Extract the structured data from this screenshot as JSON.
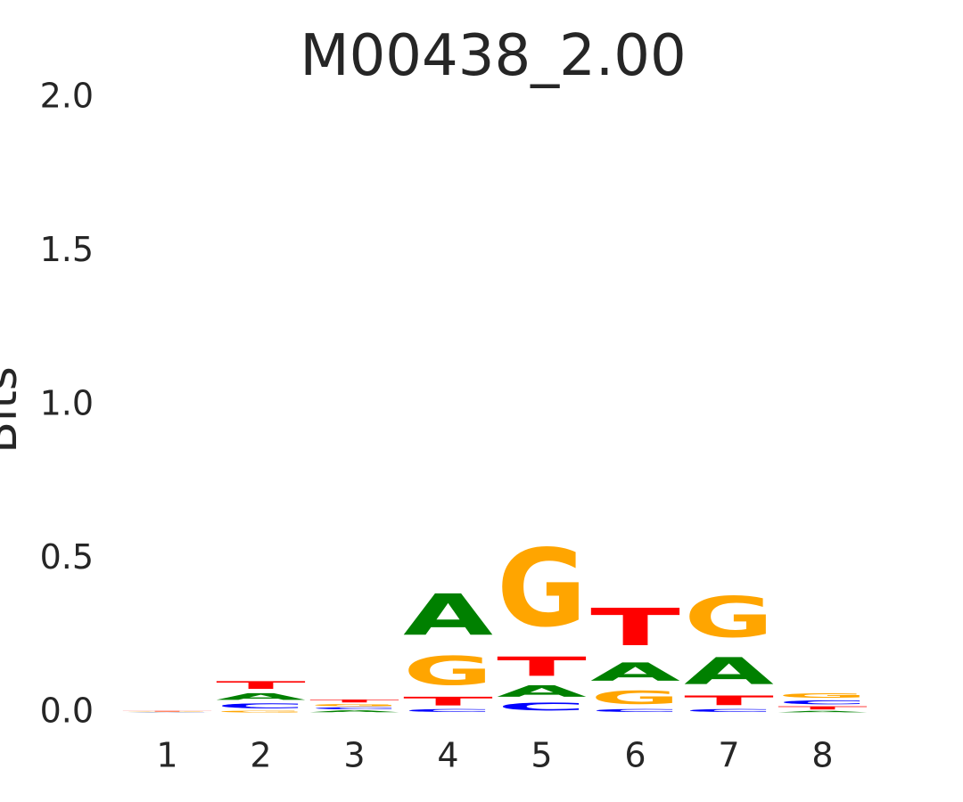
{
  "chart_data": {
    "type": "logo",
    "title": "M00438_2.00",
    "y_label": "Bits",
    "x": [
      1,
      2,
      3,
      4,
      5,
      6,
      7,
      8
    ],
    "xlim": [
      0.5,
      8.5
    ],
    "xticks": [
      1,
      2,
      3,
      4,
      5,
      6,
      7,
      8
    ],
    "ylim": [
      0,
      2
    ],
    "yticks": [
      {
        "value": 0,
        "label": "0.0"
      },
      0.5,
      {
        "value": 1,
        "label": "1.0"
      },
      1.5,
      {
        "value": 2,
        "label": "2.0"
      }
    ],
    "series": [
      {
        "name": "A",
        "color": "#008000",
        "values": [
          0.001,
          0.035,
          0.01,
          0.215,
          0.06,
          0.095,
          0.14,
          0.008
        ]
      },
      {
        "name": "C",
        "color": "#0000ff",
        "values": [
          0.001,
          0.025,
          0.01,
          0.015,
          0.04,
          0.015,
          0.015,
          0.02
        ]
      },
      {
        "name": "G",
        "color": "#ffa500",
        "values": [
          0.002,
          0.01,
          0.011,
          0.15,
          0.405,
          0.07,
          0.21,
          0.025
        ]
      },
      {
        "name": "T",
        "color": "#ff0000",
        "values": [
          0.003,
          0.04,
          0.015,
          0.045,
          0.1,
          0.195,
          0.05,
          0.016
        ]
      }
    ]
  }
}
